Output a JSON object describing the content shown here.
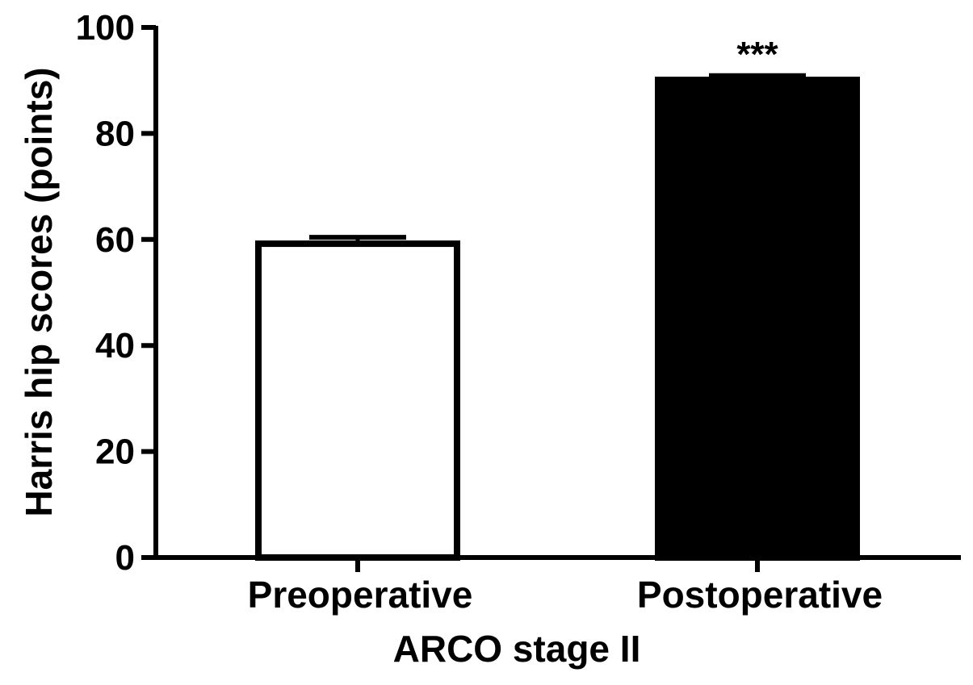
{
  "chart_data": {
    "type": "bar",
    "categories": [
      "Preoperative",
      "Postoperative"
    ],
    "values": [
      59.2,
      90.1
    ],
    "error_upper": [
      60.4,
      90.9
    ],
    "bar_fills": [
      "#ffffff",
      "#000000"
    ],
    "annotations": [
      "",
      "***"
    ],
    "xlabel": "ARCO stage II",
    "ylabel": "Harris hip scores (points)",
    "ylim": [
      0,
      100
    ],
    "yticks": [
      0,
      20,
      40,
      60,
      80,
      100
    ],
    "grid": false,
    "legend": "none"
  }
}
